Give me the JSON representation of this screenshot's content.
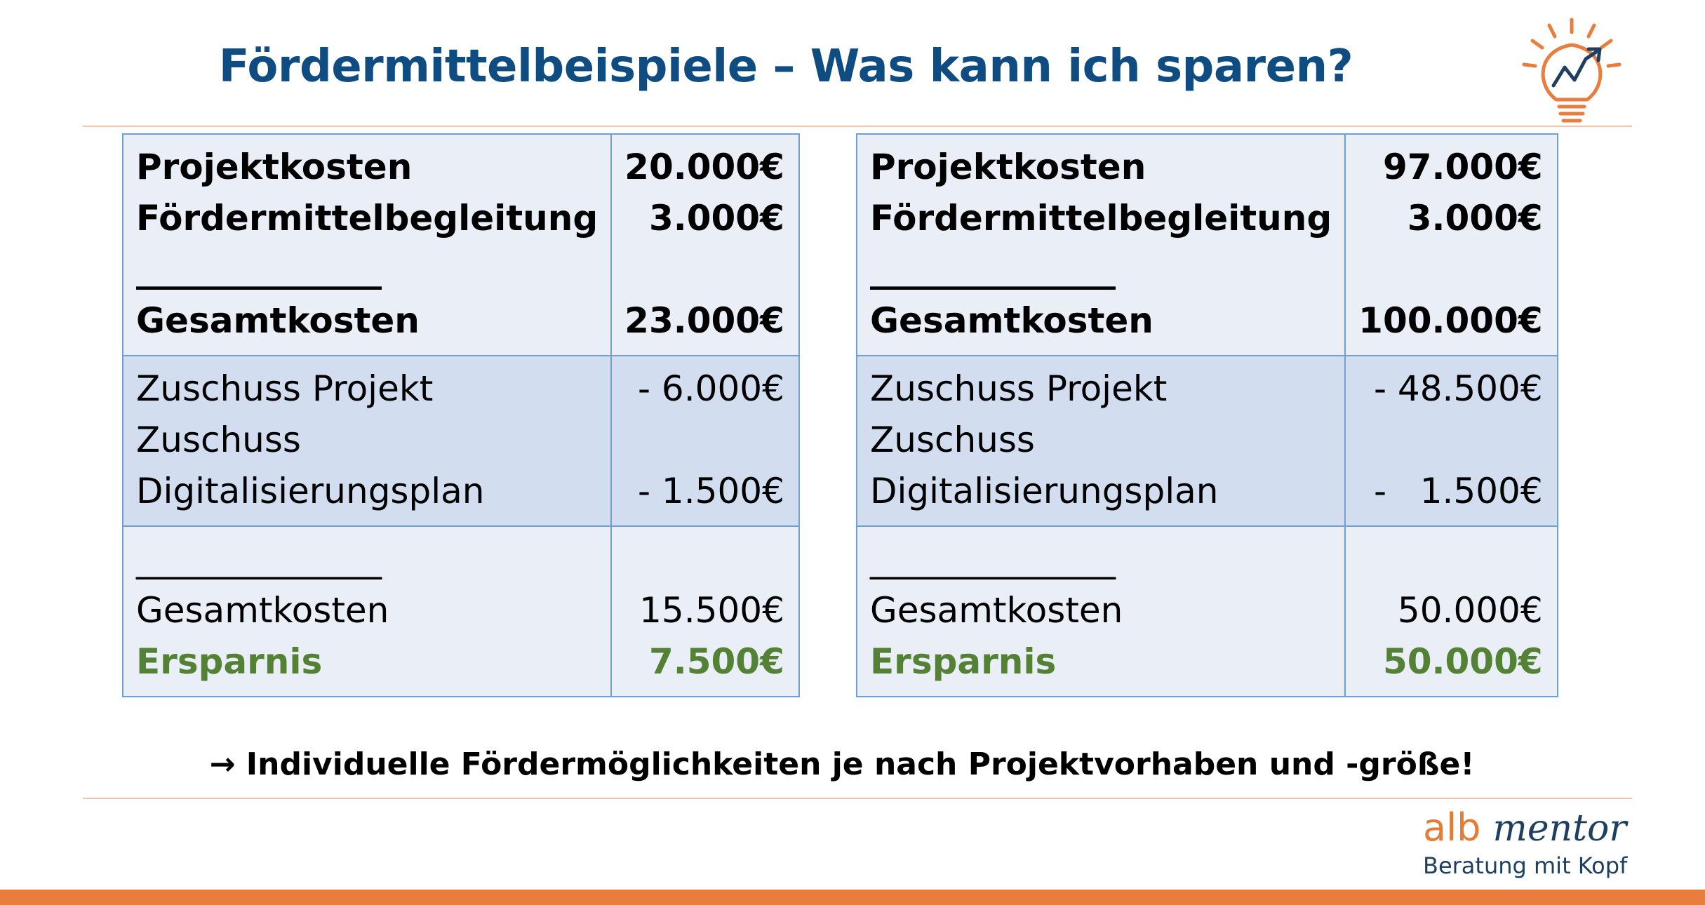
{
  "title": "Fördermittelbeispiele – Was kann ich sparen?",
  "separator": "______________",
  "examples": [
    {
      "project_label": "Projektkosten",
      "project_value": "20.000€",
      "consulting_label": "Fördermittelbegleitung",
      "consulting_value": "3.000€",
      "total_label": "Gesamtkosten",
      "total_value": "23.000€",
      "grant_project_label": "Zuschuss Projekt",
      "grant_project_value": "- 6.000€",
      "grant_plan_label_1": "Zuschuss",
      "grant_plan_label_2": "Digitalisierungsplan",
      "grant_plan_value": "- 1.500€",
      "net_label": "Gesamtkosten",
      "net_value": "15.500€",
      "savings_label": "Ersparnis",
      "savings_value": "7.500€"
    },
    {
      "project_label": "Projektkosten",
      "project_value": "97.000€",
      "consulting_label": "Fördermittelbegleitung",
      "consulting_value": "3.000€",
      "total_label": "Gesamtkosten",
      "total_value": "100.000€",
      "grant_project_label": "Zuschuss Projekt",
      "grant_project_value": "- 48.500€",
      "grant_plan_label_1": "Zuschuss",
      "grant_plan_label_2": "Digitalisierungsplan",
      "grant_plan_value": "-   1.500€",
      "net_label": "Gesamtkosten",
      "net_value": "50.000€",
      "savings_label": "Ersparnis",
      "savings_value": "50.000€"
    }
  ],
  "note": "Individuelle Fördermöglichkeiten je nach Projektvorhaben und -größe!",
  "note_arrow": "→",
  "brand": {
    "name_part1": "alb",
    "name_part2": "mentor",
    "tagline": "Beratung mit Kopf"
  },
  "colors": {
    "title": "#0f4c81",
    "accent_orange": "#e87d3e",
    "table_border": "#6fa0cf",
    "table_light": "#e9eef7",
    "table_mid": "#d2deef",
    "savings_green": "#548235"
  },
  "icons": [
    "lightbulb-chart-icon",
    "arrow-right-icon"
  ]
}
